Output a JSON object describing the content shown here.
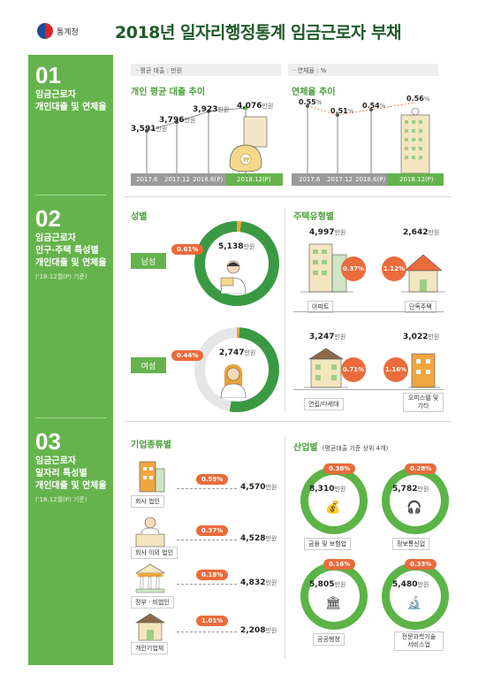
{
  "header": {
    "org": "통계청",
    "title": "2018년 일자리행정통계 임금근로자 부채"
  },
  "sections": [
    {
      "num": "01",
      "title_lines": [
        "임금근로자",
        "개인대출 및 연체율"
      ],
      "note": ""
    },
    {
      "num": "02",
      "title_lines": [
        "임금근로자",
        "인구·주택 특성별",
        "개인대출 및 연체율"
      ],
      "note": "('18.12월(P) 기준)"
    },
    {
      "num": "03",
      "title_lines": [
        "임금근로자",
        "일자리 특성별",
        "개인대출 및 연체율"
      ],
      "note": "('18.12월(P) 기준)"
    }
  ],
  "loan_chart": {
    "unit_label": "· 평균 대출 : 만원",
    "title": "개인 평균 대출 추이",
    "unit": "만원",
    "categories": [
      "2017.6",
      "2017.12",
      "2018.6(P)",
      "2018.12(P)"
    ],
    "values": [
      "3,591",
      "3,796",
      "3,923",
      "4,076"
    ]
  },
  "delinq_chart": {
    "unit_label": "· 연체율 : %",
    "title": "연체율 추이",
    "categories": [
      "2017.6",
      "2017.12",
      "2018.6(P)",
      "2018.12(P)"
    ],
    "values": [
      "0.55",
      "0.51",
      "0.54",
      "0.56"
    ],
    "unit": "%"
  },
  "gender": {
    "title": "성별",
    "unit": "만원",
    "male": {
      "label": "남성",
      "rate": "0.61%",
      "amount": "5,138"
    },
    "female": {
      "label": "여성",
      "rate": "0.44%",
      "amount": "2,747"
    }
  },
  "housing": {
    "title": "주택유형별",
    "unit": "만원",
    "items": [
      {
        "label": "아파트",
        "amount": "4,997",
        "rate": "0.37%"
      },
      {
        "label": "단독주택",
        "amount": "2,642",
        "rate": "1.12%"
      },
      {
        "label": "연립/다세대",
        "amount": "3,247",
        "rate": "0.71%"
      },
      {
        "label": "오피스텔 및 기타",
        "amount": "3,022",
        "rate": "1.16%"
      }
    ]
  },
  "company": {
    "title": "기업종류별",
    "unit": "만원",
    "items": [
      {
        "label": "회사 법인",
        "rate": "0.59%",
        "amount": "4,570"
      },
      {
        "label": "회사 이외 법인",
        "rate": "0.37%",
        "amount": "4,528"
      },
      {
        "label": "정부 · 비법인",
        "rate": "0.18%",
        "amount": "4,832"
      },
      {
        "label": "개인기업체",
        "rate": "1.01%",
        "amount": "2,208"
      }
    ]
  },
  "industry": {
    "title": "산업별",
    "subtitle": "(평균대출 기준 상위 4개)",
    "unit": "만원",
    "items": [
      {
        "label": "금융 및 보험업",
        "rate": "0.38%",
        "amount": "8,310"
      },
      {
        "label": "정보통신업",
        "rate": "0.28%",
        "amount": "5,782"
      },
      {
        "label": "공공행정",
        "rate": "0.16%",
        "amount": "5,805"
      },
      {
        "label": "전문과학기술 서비스업",
        "rate": "0.33%",
        "amount": "5,480"
      }
    ]
  },
  "colors": {
    "green": "#66b34d",
    "dark_green": "#1f5a2a",
    "orange": "#ea6b3b"
  }
}
